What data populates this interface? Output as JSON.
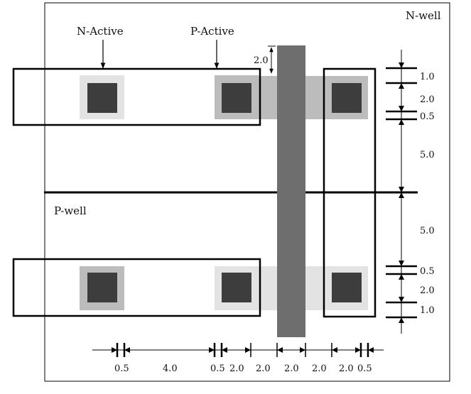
{
  "labels": {
    "nwell": "N-well",
    "pwell": "P-well",
    "n_active": "N-Active",
    "p_active": "P-Active"
  },
  "dimensions": {
    "top_gap": "2.0",
    "right": [
      "1.0",
      "2.0",
      "0.5",
      "5.0",
      "5.0",
      "0.5",
      "2.0",
      "1.0"
    ],
    "bottom": [
      "0.5",
      "4.0",
      "0.5",
      "2.0",
      "2.0",
      "2.0",
      "2.0",
      "2.0",
      "0.5"
    ]
  },
  "colors": {
    "contact": "#3d3d3d",
    "gate": "#6e6e6e",
    "p_active": "#bcbcbc",
    "n_active": "#e3e3e3",
    "outline": "#000000"
  }
}
